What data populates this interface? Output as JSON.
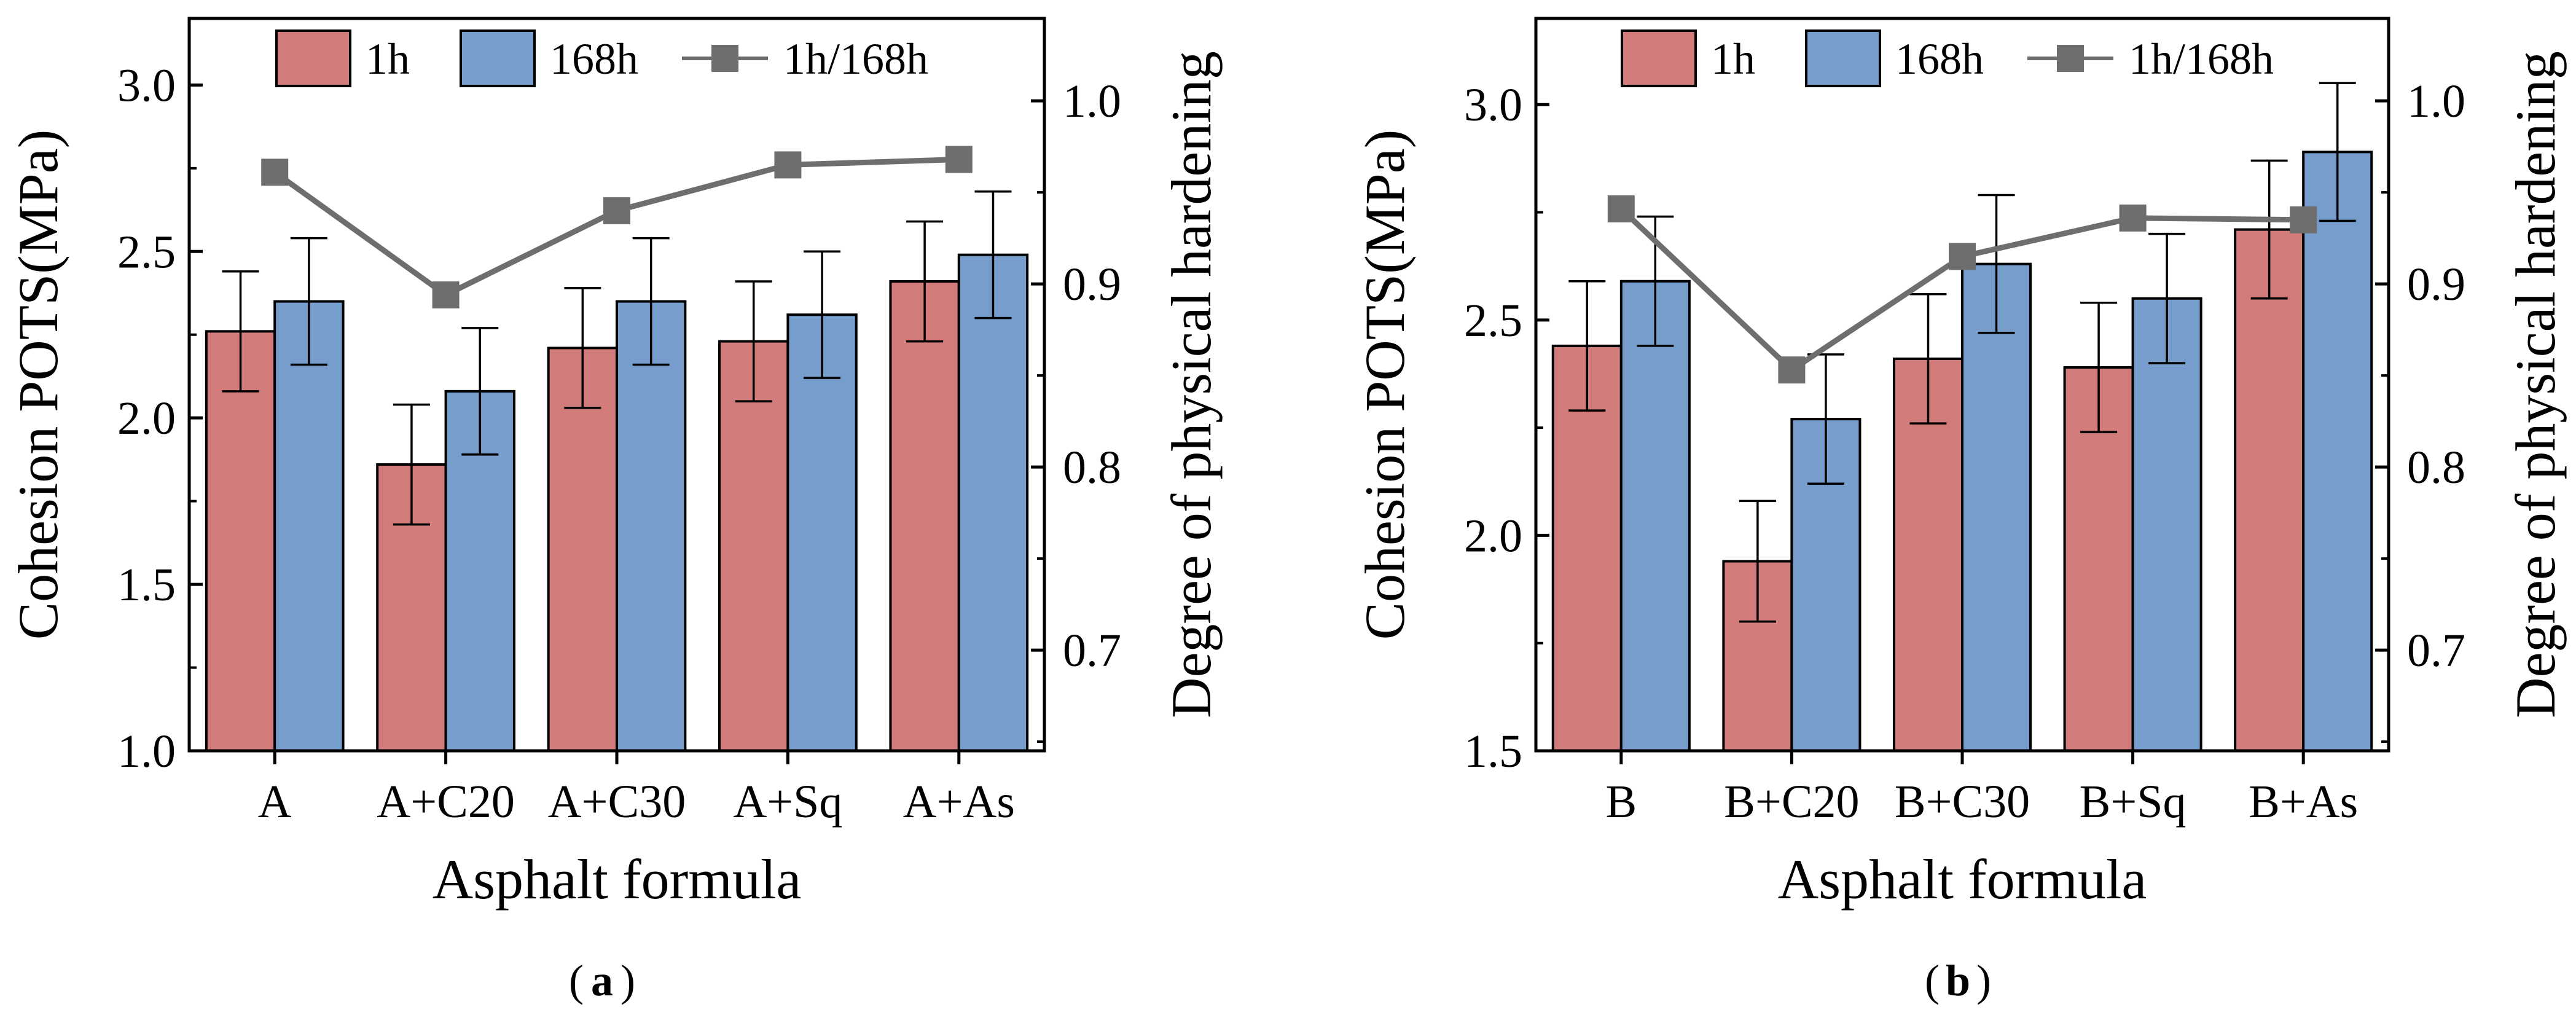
{
  "colors": {
    "bar_1h": "#d27b7b",
    "bar_168h": "#779dcd",
    "line_ratio": "#6e6e6e",
    "axis": "#000000"
  },
  "chart_data": [
    {
      "type": "bar",
      "panel_label": "a",
      "categories": [
        "A",
        "A+C20",
        "A+C30",
        "A+Sq",
        "A+As"
      ],
      "series": [
        {
          "name": "1h",
          "type": "bar",
          "axis": "left",
          "values": [
            2.26,
            1.86,
            2.21,
            2.23,
            2.41
          ],
          "errors": [
            0.18,
            0.18,
            0.18,
            0.18,
            0.18
          ]
        },
        {
          "name": "168h",
          "type": "bar",
          "axis": "left",
          "values": [
            2.35,
            2.08,
            2.35,
            2.31,
            2.49
          ],
          "errors": [
            0.19,
            0.19,
            0.19,
            0.19,
            0.19
          ]
        },
        {
          "name": "1h/168h",
          "type": "line",
          "axis": "right",
          "values": [
            0.961,
            0.894,
            0.94,
            0.965,
            0.968
          ]
        }
      ],
      "xlabel": "Asphalt formula",
      "ylabel": "Cohesion POTS(MPa)",
      "y2label": "Degree of physical hardening",
      "ylim": [
        1.0,
        3.2
      ],
      "yticks": [
        "1.0",
        "1.5",
        "2.0",
        "2.5",
        "3.0"
      ],
      "y2lim": [
        0.645,
        1.045
      ],
      "y2ticks": [
        "0.7",
        "0.8",
        "0.9",
        "1.0"
      ],
      "legend": [
        "1h",
        "168h",
        "1h/168h"
      ],
      "legend_position": "top-center",
      "grid": false
    },
    {
      "type": "bar",
      "panel_label": "b",
      "categories": [
        "B",
        "B+C20",
        "B+C30",
        "B+Sq",
        "B+As"
      ],
      "series": [
        {
          "name": "1h",
          "type": "bar",
          "axis": "left",
          "values": [
            2.44,
            1.94,
            2.41,
            2.39,
            2.71
          ],
          "errors": [
            0.15,
            0.14,
            0.15,
            0.15,
            0.16
          ]
        },
        {
          "name": "168h",
          "type": "bar",
          "axis": "left",
          "values": [
            2.59,
            2.27,
            2.63,
            2.55,
            2.89
          ],
          "errors": [
            0.15,
            0.15,
            0.16,
            0.15,
            0.16
          ]
        },
        {
          "name": "1h/168h",
          "type": "line",
          "axis": "right",
          "values": [
            0.941,
            0.853,
            0.915,
            0.936,
            0.935
          ]
        }
      ],
      "xlabel": "Asphalt formula",
      "ylabel": "Cohesion POTS(MPa)",
      "y2label": "Degree of physical hardening",
      "ylim": [
        1.5,
        3.2
      ],
      "yticks": [
        "1.5",
        "2.0",
        "2.5",
        "3.0"
      ],
      "y2lim": [
        0.645,
        1.045
      ],
      "y2ticks": [
        "0.7",
        "0.8",
        "0.9",
        "1.0"
      ],
      "legend": [
        "1h",
        "168h",
        "1h/168h"
      ],
      "legend_position": "top-center",
      "grid": false
    }
  ]
}
